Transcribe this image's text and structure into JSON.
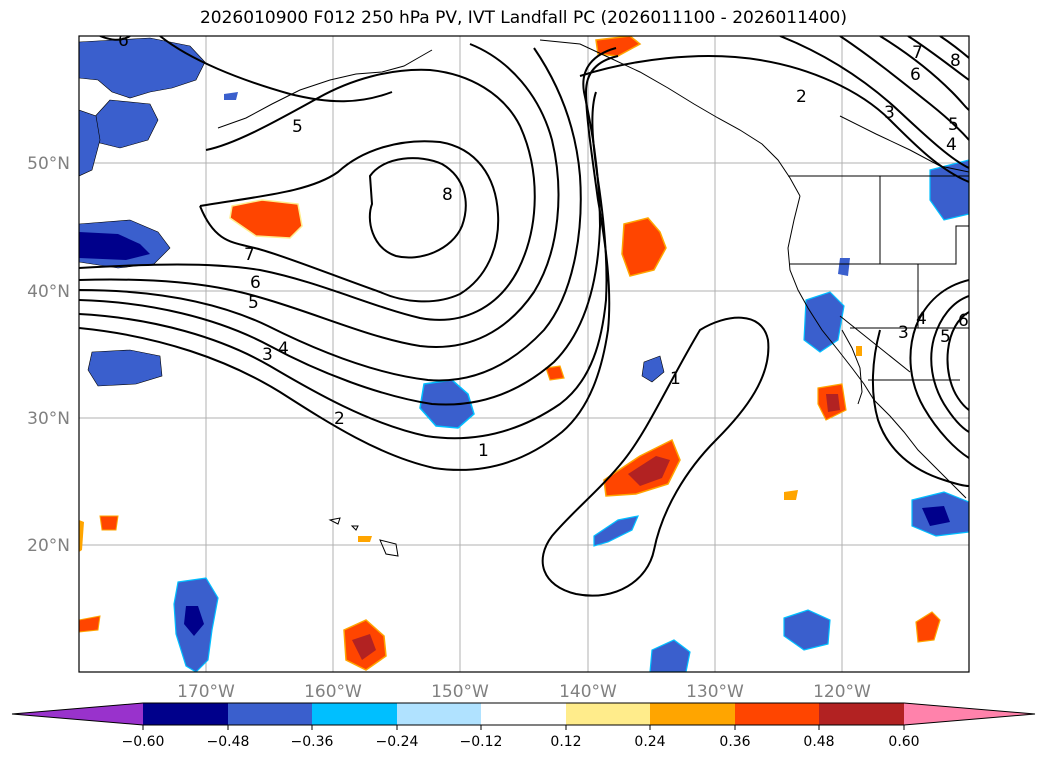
{
  "title": "2026010900 F012 250 hPa PV, IVT Landfall PC (2026011100 - 2026011400)",
  "lat_labels": [
    "50°N",
    "40°N",
    "30°N",
    "20°N"
  ],
  "lon_labels": [
    "170°W",
    "160°W",
    "150°W",
    "140°W",
    "130°W",
    "120°W"
  ],
  "contour_labels": {
    "c6_nw": "6",
    "c5_n": "5",
    "c8": "8",
    "c7": "7",
    "c6": "6",
    "c5": "5",
    "c4": "4",
    "c3": "3",
    "c2": "2",
    "c1_se": "1",
    "c1_s": "1",
    "c2_ne": "2",
    "c3_ne": "3",
    "c6_ne": "6",
    "c7_ne": "7",
    "c8_ne": "8",
    "c5_ne": "5",
    "c4_ne": "4",
    "c3_e": "3",
    "c4_e": "4",
    "c5_e": "5",
    "c6_e": "6"
  },
  "colorbar": {
    "ticks": [
      "−0.60",
      "−0.48",
      "−0.36",
      "−0.24",
      "−0.12",
      "0.12",
      "0.24",
      "0.36",
      "0.48",
      "0.60"
    ],
    "colors": [
      "#9932cc",
      "#00008b",
      "#3a5fcd",
      "#00bfff",
      "#b0e2ff",
      "#ffffff",
      "#ffec8b",
      "#ffa500",
      "#ff4500",
      "#b22222",
      "#ff82ab"
    ]
  },
  "colors": {
    "neg1": "#3a5fcd",
    "neg2": "#00008b",
    "neg3": "#00bfff",
    "pos1": "#ff4500",
    "pos2": "#b22222",
    "pos0": "#ffa500",
    "pos00": "#ffec8b"
  }
}
